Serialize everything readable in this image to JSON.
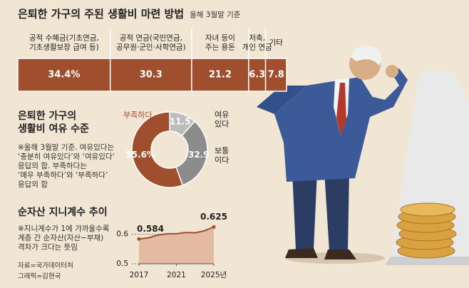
{
  "chart_data": [
    {
      "type": "bar",
      "title": "은퇴한 가구의 주된 생활비 마련 방법",
      "subtitle": "올해 3월말 기준",
      "categories": [
        "공적 수혜금(기초연금,\n기초생활보장 급여 등)",
        "공적 연금(국민연금,\n공무원·군인·사학연금)",
        "자녀 등이\n주는 용돈",
        "저축,\n개인 연금",
        "기타"
      ],
      "values": [
        34.4,
        30.3,
        21.2,
        6.3,
        7.8
      ],
      "value_labels": [
        "34.4%",
        "30.3",
        "21.2",
        "6.3",
        "7.8"
      ],
      "color": "#9f4f2e",
      "xlim": [
        0,
        100
      ]
    },
    {
      "type": "pie",
      "donut": true,
      "title": "은퇴한 가구의\n생활비 여유 수준",
      "note": "※올해 3월말 기준. 여유있다는\n‘충분히 여유있다’와 ‘여유있다’\n응답의 합. 부족하다는\n‘매우 부족하다’와 ‘부족하다’\n응답의 합",
      "categories": [
        "여유\n있다",
        "보통\n이다",
        "부족하다"
      ],
      "values": [
        11.5,
        32.9,
        55.6
      ],
      "value_labels": [
        "11.5",
        "32.9",
        "55.6%"
      ],
      "colors": [
        "#bdbdbd",
        "#8c8c8c",
        "#9f4f2e"
      ]
    },
    {
      "type": "line",
      "title": "순자산 지니계수 추이",
      "note": "※지니계수가 1에 가까울수록\n계층 간 순자산(자산−부채)\n격차가 크다는 뜻임",
      "x": [
        2017,
        2018,
        2019,
        2020,
        2021,
        2022,
        2023,
        2024,
        2025
      ],
      "values": [
        0.584,
        0.588,
        0.597,
        0.602,
        0.602,
        0.606,
        0.605,
        0.612,
        0.625
      ],
      "xlim": [
        2017,
        2025
      ],
      "xticks": [
        2017,
        2021,
        {
          "value": 2025,
          "label": "2025년"
        }
      ],
      "ylim": [
        0.5,
        0.65
      ],
      "yticks": [
        0.6,
        0.5
      ],
      "color": "#9f4f2e",
      "area": true,
      "area_color": "#e2bba2",
      "grid": true
    }
  ],
  "source": "자료=국가데이터처",
  "credit": "그래픽=김현국"
}
